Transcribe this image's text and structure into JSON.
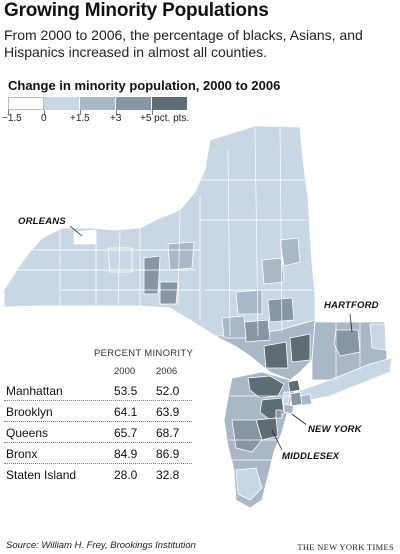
{
  "header": {
    "title": "Growing Minority Populations",
    "subtitle": "From 2000 to 2006, the percentage of blacks, Asians, and Hispanics increased in almost all counties."
  },
  "legend": {
    "title": "Change in minority population, 2000 to 2006",
    "labels": [
      "−1.5",
      "0",
      "+1.5",
      "+3",
      "+5 pct. pts."
    ],
    "colors": [
      "#ffffff",
      "#c9d6e4",
      "#a9b7c6",
      "#8795a4",
      "#5e6c74"
    ]
  },
  "callouts": {
    "orleans": "ORLEANS",
    "hartford": "HARTFORD",
    "new_york": "NEW YORK",
    "middlesex": "MIDDLESEX"
  },
  "table": {
    "header": "PERCENT MINORITY",
    "years": [
      "2000",
      "2006"
    ],
    "rows": [
      {
        "name": "Manhattan",
        "v2000": "53.5",
        "v2006": "52.0"
      },
      {
        "name": "Brooklyn",
        "v2000": "64.1",
        "v2006": "63.9"
      },
      {
        "name": "Queens",
        "v2000": "65.7",
        "v2006": "68.7"
      },
      {
        "name": "Bronx",
        "v2000": "84.9",
        "v2006": "86.9"
      },
      {
        "name": "Staten Island",
        "v2000": "28.0",
        "v2006": "32.8"
      }
    ]
  },
  "footer": {
    "source": "Source: William H. Frey, Brookings Institution",
    "credit": "THE NEW YORK TIMES"
  }
}
